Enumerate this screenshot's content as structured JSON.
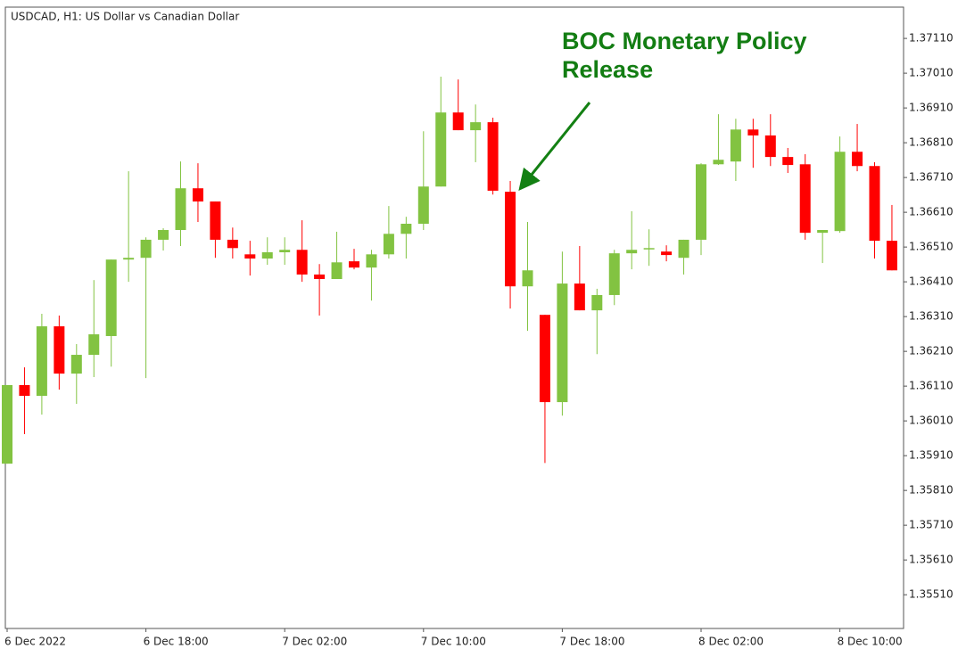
{
  "chart_data": {
    "type": "candlestick",
    "title": "USDCAD, H1:  US Dollar vs Canadian Dollar",
    "annotation": "BOC Monetary Policy Release",
    "up_color": "#82c341",
    "down_color": "#ff0000",
    "categories": [
      "6 Dec 2022",
      null,
      null,
      null,
      null,
      null,
      null,
      null,
      "6 Dec 18:00",
      null,
      null,
      null,
      null,
      null,
      null,
      null,
      "7 Dec 02:00",
      null,
      null,
      null,
      null,
      null,
      null,
      null,
      "7 Dec 10:00",
      null,
      null,
      null,
      null,
      null,
      null,
      null,
      "7 Dec 18:00",
      null,
      null,
      null,
      null,
      null,
      null,
      null,
      "8 Dec 02:00",
      null,
      null,
      null,
      null,
      null,
      null,
      null,
      "8 Dec 10:00",
      null,
      null,
      null
    ],
    "open": [
      1.35887,
      1.36113,
      1.36082,
      1.36282,
      1.36146,
      1.362,
      1.36254,
      1.36474,
      1.36479,
      1.36531,
      1.36559,
      1.36679,
      1.36641,
      1.36531,
      1.36489,
      1.36477,
      1.36495,
      1.36502,
      1.36431,
      1.36418,
      1.36469,
      1.36451,
      1.36489,
      1.36548,
      1.36577,
      1.36684,
      1.36897,
      1.36846,
      1.36869,
      1.36669,
      1.36397,
      1.36315,
      1.36064,
      1.36405,
      1.36328,
      1.36372,
      1.36492,
      1.36505,
      1.36497,
      1.36479,
      1.36531,
      1.36748,
      1.36756,
      1.36848,
      1.36831,
      1.36769,
      1.36748,
      1.36551,
      1.36556,
      1.36784,
      1.36743,
      1.36528
    ],
    "high": [
      1.36113,
      1.36164,
      1.36318,
      1.36313,
      1.36231,
      1.36415,
      1.36474,
      1.36728,
      1.36538,
      1.36564,
      1.36756,
      1.36751,
      1.36641,
      1.36566,
      1.36528,
      1.36538,
      1.36538,
      1.36587,
      1.36461,
      1.36554,
      1.36505,
      1.36502,
      1.36628,
      1.36597,
      1.36843,
      1.37,
      1.36992,
      1.3692,
      1.36882,
      1.367,
      1.36582,
      1.36315,
      1.36497,
      1.36513,
      1.3639,
      1.36502,
      1.36613,
      1.36561,
      1.36515,
      1.36531,
      1.36751,
      1.36892,
      1.36879,
      1.36879,
      1.36892,
      1.36795,
      1.36777,
      1.36559,
      1.36828,
      1.36864,
      1.36754,
      1.36631
    ],
    "low": [
      1.35887,
      1.35972,
      1.36028,
      1.361,
      1.36059,
      1.36136,
      1.36166,
      1.3641,
      1.36133,
      1.365,
      1.36513,
      1.36582,
      1.36479,
      1.36477,
      1.36428,
      1.36459,
      1.36459,
      1.3641,
      1.36313,
      1.36418,
      1.36446,
      1.36356,
      1.36477,
      1.36477,
      1.36559,
      1.36684,
      1.36846,
      1.36754,
      1.36661,
      1.36333,
      1.36269,
      1.35889,
      1.36025,
      1.36328,
      1.36202,
      1.36343,
      1.36446,
      1.36456,
      1.36469,
      1.36431,
      1.36487,
      1.36746,
      1.367,
      1.36738,
      1.36743,
      1.36723,
      1.36531,
      1.36464,
      1.36551,
      1.36728,
      1.36477,
      1.36443
    ],
    "close": [
      1.36113,
      1.36082,
      1.36282,
      1.36146,
      1.362,
      1.36259,
      1.36474,
      1.36479,
      1.36531,
      1.36559,
      1.36679,
      1.36641,
      1.36531,
      1.36507,
      1.36477,
      1.36495,
      1.36502,
      1.36431,
      1.36418,
      1.36466,
      1.36451,
      1.36489,
      1.36548,
      1.36577,
      1.36684,
      1.36897,
      1.36846,
      1.36869,
      1.36672,
      1.36397,
      1.36443,
      1.36064,
      1.36405,
      1.36328,
      1.36372,
      1.36492,
      1.36502,
      1.36507,
      1.36487,
      1.36531,
      1.36748,
      1.36761,
      1.36848,
      1.36831,
      1.36769,
      1.36746,
      1.36551,
      1.36559,
      1.36784,
      1.36743,
      1.36528,
      1.36443
    ],
    "ylim": [
      1.35413,
      1.372
    ],
    "yticks": [
      {
        "value": 1.3551,
        "label": "1.35510"
      },
      {
        "value": 1.3561,
        "label": "1.35610"
      },
      {
        "value": 1.3571,
        "label": "1.35710"
      },
      {
        "value": 1.3581,
        "label": "1.35810"
      },
      {
        "value": 1.3591,
        "label": "1.35910"
      },
      {
        "value": 1.3601,
        "label": "1.36010"
      },
      {
        "value": 1.3611,
        "label": "1.36110"
      },
      {
        "value": 1.3621,
        "label": "1.36210"
      },
      {
        "value": 1.3631,
        "label": "1.36310"
      },
      {
        "value": 1.3641,
        "label": "1.36410"
      },
      {
        "value": 1.3651,
        "label": "1.36510"
      },
      {
        "value": 1.3661,
        "label": "1.36610"
      },
      {
        "value": 1.3671,
        "label": "1.36710"
      },
      {
        "value": 1.3681,
        "label": "1.36810"
      },
      {
        "value": 1.3691,
        "label": "1.36910"
      },
      {
        "value": 1.3701,
        "label": "1.37010"
      },
      {
        "value": 1.3711,
        "label": "1.37110"
      }
    ]
  }
}
